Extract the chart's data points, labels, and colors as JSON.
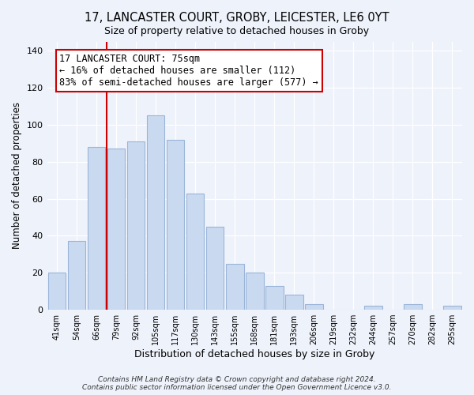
{
  "title": "17, LANCASTER COURT, GROBY, LEICESTER, LE6 0YT",
  "subtitle": "Size of property relative to detached houses in Groby",
  "xlabel": "Distribution of detached houses by size in Groby",
  "ylabel": "Number of detached properties",
  "bar_labels": [
    "41sqm",
    "54sqm",
    "66sqm",
    "79sqm",
    "92sqm",
    "105sqm",
    "117sqm",
    "130sqm",
    "143sqm",
    "155sqm",
    "168sqm",
    "181sqm",
    "193sqm",
    "206sqm",
    "219sqm",
    "232sqm",
    "244sqm",
    "257sqm",
    "270sqm",
    "282sqm",
    "295sqm"
  ],
  "bar_values": [
    20,
    37,
    88,
    87,
    91,
    105,
    92,
    63,
    45,
    25,
    20,
    13,
    8,
    3,
    0,
    0,
    2,
    0,
    3,
    0,
    2
  ],
  "bar_color": "#c9d9f0",
  "bar_edge_color": "#9ab5d8",
  "vline_color": "#cc0000",
  "annotation_text": "17 LANCASTER COURT: 75sqm\n← 16% of detached houses are smaller (112)\n83% of semi-detached houses are larger (577) →",
  "annotation_box_edgecolor": "#cc0000",
  "annotation_box_facecolor": "#ffffff",
  "ylim": [
    0,
    145
  ],
  "yticks": [
    0,
    20,
    40,
    60,
    80,
    100,
    120,
    140
  ],
  "footer": "Contains HM Land Registry data © Crown copyright and database right 2024.\nContains public sector information licensed under the Open Government Licence v3.0.",
  "title_fontsize": 10.5,
  "subtitle_fontsize": 9,
  "xlabel_fontsize": 9,
  "ylabel_fontsize": 8.5,
  "annotation_fontsize": 8.5,
  "footer_fontsize": 6.5,
  "background_color": "#eef2fb",
  "grid_color": "#ffffff"
}
